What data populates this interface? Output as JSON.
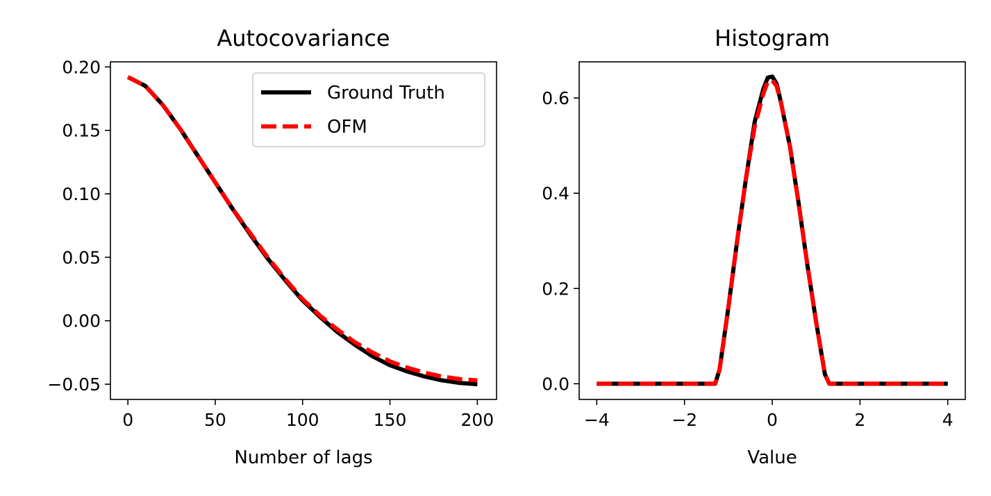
{
  "chart_data": [
    {
      "type": "line",
      "title": "Autocovariance",
      "xlabel": "Number of lags",
      "ylabel": "",
      "xlim": [
        -10,
        211
      ],
      "ylim": [
        -0.062,
        0.204
      ],
      "xticks": [
        0,
        50,
        100,
        150,
        200
      ],
      "xtick_labels": [
        "0",
        "50",
        "100",
        "150",
        "200"
      ],
      "yticks": [
        -0.05,
        0.0,
        0.05,
        0.1,
        0.15,
        0.2
      ],
      "ytick_labels": [
        "−0.05",
        "0.00",
        "0.05",
        "0.10",
        "0.15",
        "0.20"
      ],
      "legend_position": "top-right",
      "x": [
        0,
        10,
        20,
        30,
        40,
        50,
        60,
        70,
        80,
        90,
        100,
        110,
        120,
        130,
        140,
        150,
        160,
        170,
        180,
        190,
        200
      ],
      "series": [
        {
          "name": "Ground Truth",
          "color": "#000000",
          "style": "solid",
          "values": [
            0.192,
            0.185,
            0.17,
            0.151,
            0.13,
            0.109,
            0.088,
            0.068,
            0.049,
            0.032,
            0.016,
            0.003,
            -0.009,
            -0.019,
            -0.028,
            -0.035,
            -0.04,
            -0.044,
            -0.047,
            -0.049,
            -0.05
          ]
        },
        {
          "name": "OFM",
          "color": "#ff0000",
          "style": "dashed",
          "values": [
            0.192,
            0.185,
            0.17,
            0.151,
            0.13,
            0.109,
            0.088,
            0.069,
            0.05,
            0.033,
            0.017,
            0.004,
            -0.007,
            -0.017,
            -0.025,
            -0.032,
            -0.037,
            -0.041,
            -0.044,
            -0.046,
            -0.047
          ]
        }
      ]
    },
    {
      "type": "line",
      "title": "Histogram",
      "xlabel": "Value",
      "ylabel": "",
      "xlim": [
        -4.4,
        4.4
      ],
      "ylim": [
        -0.033,
        0.676
      ],
      "xticks": [
        -4,
        -2,
        0,
        2,
        4
      ],
      "xtick_labels": [
        "−4",
        "−2",
        "0",
        "2",
        "4"
      ],
      "yticks": [
        0.0,
        0.2,
        0.4,
        0.6
      ],
      "ytick_labels": [
        "0.0",
        "0.2",
        "0.4",
        "0.6"
      ],
      "x": [
        -4.0,
        -1.3,
        -1.2,
        -1.0,
        -0.8,
        -0.6,
        -0.4,
        -0.2,
        -0.1,
        0.0,
        0.1,
        0.2,
        0.4,
        0.6,
        0.8,
        1.0,
        1.2,
        1.3,
        4.0
      ],
      "series": [
        {
          "name": "Ground Truth",
          "color": "#000000",
          "style": "solid",
          "values": [
            0.0,
            0.0,
            0.03,
            0.16,
            0.3,
            0.43,
            0.55,
            0.62,
            0.643,
            0.645,
            0.63,
            0.59,
            0.5,
            0.38,
            0.25,
            0.13,
            0.02,
            0.0,
            0.0
          ]
        },
        {
          "name": "OFM",
          "color": "#ff0000",
          "style": "dashed",
          "values": [
            0.0,
            0.0,
            0.03,
            0.16,
            0.3,
            0.43,
            0.54,
            0.61,
            0.635,
            0.637,
            0.625,
            0.59,
            0.5,
            0.38,
            0.25,
            0.13,
            0.02,
            0.0,
            0.0
          ]
        }
      ]
    }
  ]
}
